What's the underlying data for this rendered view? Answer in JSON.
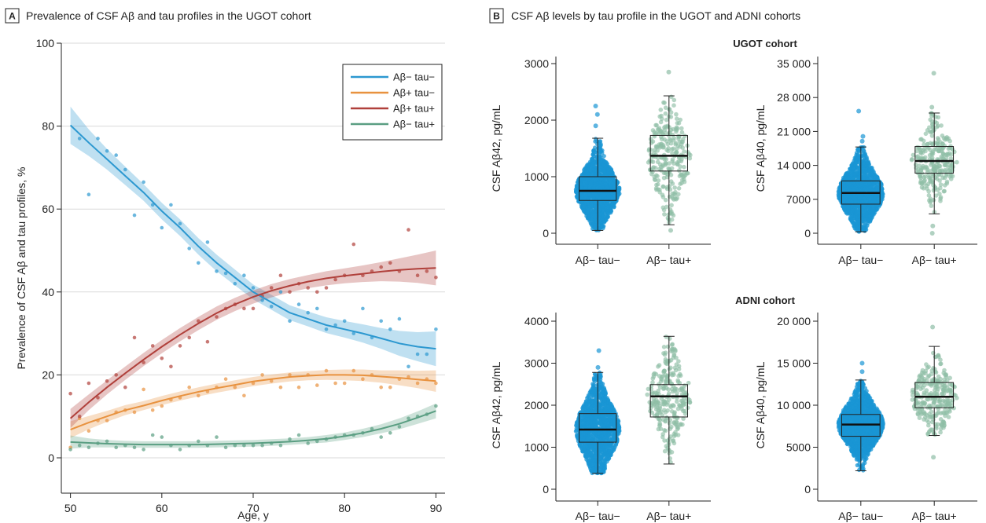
{
  "colors": {
    "ab_neg_tau_neg": "#2c98d0",
    "ab_pos_tau_neg": "#e8923f",
    "ab_pos_tau_pos": "#b0403b",
    "ab_neg_tau_pos": "#5a9e82",
    "box_neg": "#1a96d4",
    "box_pos": "#8fbea6"
  },
  "panel_a": {
    "letter": "A",
    "title": "Prevalence of CSF Aβ and tau profiles in the UGOT cohort"
  },
  "panel_b": {
    "letter": "B",
    "title": "CSF Aβ levels by tau profile in the UGOT and ADNI cohorts",
    "ugot_label": "UGOT cohort",
    "adni_label": "ADNI cohort"
  },
  "chart_data": [
    {
      "id": "prevalence",
      "type": "line",
      "xlabel": "Age, y",
      "ylabel": "Prevalence of CSF Aβ and tau profiles, %",
      "xlim": [
        49,
        91
      ],
      "ylim": [
        0,
        100
      ],
      "xticks": [
        50,
        60,
        70,
        80,
        90
      ],
      "yticks": [
        0,
        20,
        40,
        60,
        80,
        100
      ],
      "grid": true,
      "legend_position": "top-right",
      "x": [
        50,
        52,
        54,
        56,
        58,
        60,
        62,
        64,
        66,
        68,
        70,
        72,
        74,
        76,
        78,
        80,
        82,
        84,
        86,
        88,
        90
      ],
      "series": [
        {
          "name": "Aβ− tau−",
          "color": "#2c98d0",
          "values": [
            80.2,
            76.0,
            72.0,
            68.0,
            64.0,
            59.5,
            55.5,
            51.0,
            47.0,
            43.5,
            40.0,
            37.5,
            35.0,
            33.5,
            32.0,
            31.0,
            30.0,
            28.8,
            27.6,
            26.8,
            26.3
          ],
          "band": [
            4.5,
            3.2,
            2.5,
            2.2,
            2.0,
            2.0,
            2.0,
            2.0,
            2.0,
            1.9,
            1.8,
            1.8,
            1.8,
            1.8,
            1.9,
            2.0,
            2.2,
            2.5,
            3.0,
            3.5,
            4.2
          ],
          "points": [
            [
              51,
              77
            ],
            [
              52,
              63.5
            ],
            [
              53,
              77
            ],
            [
              54,
              74
            ],
            [
              55,
              73
            ],
            [
              56,
              69.5
            ],
            [
              57,
              58.5
            ],
            [
              58,
              66.5
            ],
            [
              59,
              61
            ],
            [
              60,
              55.5
            ],
            [
              61,
              61
            ],
            [
              62,
              56.5
            ],
            [
              63,
              50.5
            ],
            [
              64,
              47
            ],
            [
              65,
              52
            ],
            [
              66,
              45
            ],
            [
              67,
              44.5
            ],
            [
              68,
              42
            ],
            [
              69,
              44
            ],
            [
              70,
              41
            ],
            [
              71,
              38
            ],
            [
              72,
              36.5
            ],
            [
              73,
              40
            ],
            [
              74,
              33
            ],
            [
              75,
              37
            ],
            [
              76,
              35
            ],
            [
              77,
              36
            ],
            [
              78,
              31
            ],
            [
              79,
              32
            ],
            [
              80,
              33
            ],
            [
              81,
              30
            ],
            [
              82,
              36
            ],
            [
              83,
              29
            ],
            [
              84,
              33
            ],
            [
              85,
              31
            ],
            [
              86,
              33.5
            ],
            [
              87,
              22
            ],
            [
              88,
              25
            ],
            [
              89,
              25
            ],
            [
              90,
              31
            ]
          ]
        },
        {
          "name": "Aβ+ tau−",
          "color": "#e8923f",
          "values": [
            6.8,
            8.5,
            10.0,
            11.5,
            12.6,
            13.8,
            14.9,
            15.9,
            16.8,
            17.6,
            18.4,
            19.0,
            19.5,
            19.8,
            20.0,
            20.0,
            19.9,
            19.6,
            19.3,
            18.9,
            18.5
          ],
          "band": [
            2.0,
            1.6,
            1.3,
            1.2,
            1.1,
            1.1,
            1.1,
            1.1,
            1.1,
            1.1,
            1.1,
            1.1,
            1.1,
            1.1,
            1.2,
            1.3,
            1.4,
            1.5,
            1.8,
            2.1,
            2.6
          ],
          "points": [
            [
              50,
              2.5
            ],
            [
              51,
              9.5
            ],
            [
              52,
              6.5
            ],
            [
              53,
              9
            ],
            [
              54,
              9
            ],
            [
              55,
              11
            ],
            [
              56,
              11.5
            ],
            [
              57,
              11
            ],
            [
              58,
              16.5
            ],
            [
              59,
              11.5
            ],
            [
              60,
              12.5
            ],
            [
              61,
              14
            ],
            [
              62,
              14.5
            ],
            [
              63,
              17
            ],
            [
              64,
              15
            ],
            [
              65,
              16
            ],
            [
              66,
              17
            ],
            [
              67,
              19
            ],
            [
              68,
              17
            ],
            [
              69,
              15
            ],
            [
              70,
              18
            ],
            [
              71,
              20
            ],
            [
              72,
              18.5
            ],
            [
              73,
              17
            ],
            [
              74,
              20
            ],
            [
              75,
              17
            ],
            [
              76,
              20
            ],
            [
              77,
              17.5
            ],
            [
              78,
              21
            ],
            [
              79,
              18
            ],
            [
              80,
              18
            ],
            [
              81,
              21
            ],
            [
              82,
              19
            ],
            [
              83,
              20
            ],
            [
              84,
              17
            ],
            [
              85,
              17
            ],
            [
              86,
              19
            ],
            [
              87,
              19.5
            ],
            [
              88,
              18
            ],
            [
              89,
              19
            ],
            [
              90,
              18
            ]
          ]
        },
        {
          "name": "Aβ+ tau+",
          "color": "#b0403b",
          "values": [
            9.5,
            13.4,
            17.0,
            20.4,
            23.7,
            26.8,
            29.7,
            32.4,
            34.9,
            37.0,
            38.8,
            40.3,
            41.5,
            42.5,
            43.3,
            43.9,
            44.4,
            44.9,
            45.3,
            45.6,
            45.8
          ],
          "band": [
            2.3,
            1.9,
            1.7,
            1.6,
            1.6,
            1.6,
            1.6,
            1.6,
            1.6,
            1.6,
            1.6,
            1.6,
            1.6,
            1.6,
            1.7,
            1.8,
            2.0,
            2.3,
            2.8,
            3.4,
            4.2
          ],
          "points": [
            [
              50,
              15.5
            ],
            [
              51,
              10
            ],
            [
              52,
              18
            ],
            [
              53,
              14.5
            ],
            [
              54,
              18.5
            ],
            [
              55,
              20
            ],
            [
              56,
              17
            ],
            [
              57,
              29
            ],
            [
              58,
              23
            ],
            [
              59,
              27
            ],
            [
              60,
              24
            ],
            [
              61,
              22
            ],
            [
              62,
              27
            ],
            [
              63,
              29
            ],
            [
              64,
              33
            ],
            [
              65,
              28
            ],
            [
              66,
              34
            ],
            [
              67,
              36
            ],
            [
              68,
              37
            ],
            [
              69,
              36
            ],
            [
              70,
              36
            ],
            [
              71,
              39
            ],
            [
              72,
              41
            ],
            [
              73,
              44
            ],
            [
              74,
              40
            ],
            [
              75,
              42
            ],
            [
              76,
              41
            ],
            [
              77,
              40
            ],
            [
              78,
              41
            ],
            [
              79,
              43
            ],
            [
              80,
              44
            ],
            [
              81,
              51.5
            ],
            [
              82,
              44
            ],
            [
              83,
              45
            ],
            [
              84,
              46
            ],
            [
              85,
              47
            ],
            [
              86,
              45
            ],
            [
              87,
              55
            ],
            [
              88,
              44
            ],
            [
              89,
              45
            ],
            [
              90,
              43.5
            ]
          ]
        },
        {
          "name": "Aβ− tau+",
          "color": "#5a9e82",
          "values": [
            3.8,
            3.6,
            3.4,
            3.3,
            3.2,
            3.2,
            3.2,
            3.2,
            3.3,
            3.4,
            3.5,
            3.7,
            3.9,
            4.2,
            4.6,
            5.2,
            6.0,
            7.0,
            8.2,
            9.7,
            11.3
          ],
          "band": [
            1.6,
            1.1,
            0.9,
            0.8,
            0.8,
            0.8,
            0.8,
            0.8,
            0.8,
            0.8,
            0.8,
            0.8,
            0.8,
            0.8,
            0.9,
            0.9,
            1.0,
            1.1,
            1.3,
            1.5,
            1.8
          ],
          "points": [
            [
              50,
              2
            ],
            [
              51,
              3
            ],
            [
              52,
              2.5
            ],
            [
              53,
              3.5
            ],
            [
              54,
              4
            ],
            [
              55,
              2.5
            ],
            [
              56,
              3
            ],
            [
              57,
              2.5
            ],
            [
              58,
              2
            ],
            [
              59,
              5.5
            ],
            [
              60,
              5
            ],
            [
              61,
              3
            ],
            [
              62,
              2
            ],
            [
              63,
              3
            ],
            [
              64,
              4
            ],
            [
              65,
              3
            ],
            [
              66,
              5
            ],
            [
              67,
              2.5
            ],
            [
              68,
              3
            ],
            [
              69,
              3
            ],
            [
              70,
              3
            ],
            [
              71,
              3
            ],
            [
              72,
              3.5
            ],
            [
              73,
              3
            ],
            [
              74,
              4.5
            ],
            [
              75,
              5.5
            ],
            [
              76,
              3.5
            ],
            [
              77,
              4
            ],
            [
              78,
              4.5
            ],
            [
              79,
              5
            ],
            [
              80,
              5.5
            ],
            [
              81,
              5.5
            ],
            [
              82,
              6
            ],
            [
              83,
              7
            ],
            [
              84,
              5
            ],
            [
              85,
              6
            ],
            [
              86,
              7.5
            ],
            [
              87,
              9.5
            ],
            [
              88,
              10
            ],
            [
              89,
              10.5
            ],
            [
              90,
              12.5
            ]
          ]
        }
      ]
    },
    {
      "id": "ugot_ab42",
      "type": "box",
      "ylabel": "CSF Aβ42, pg/mL",
      "ylim": [
        0,
        3000
      ],
      "yticks": [
        0,
        1000,
        2000,
        3000
      ],
      "ytick_labels": [
        "0",
        "1000",
        "2000",
        "3000"
      ],
      "categories": [
        "Aβ− tau−",
        "Aβ− tau+"
      ],
      "boxes": [
        {
          "whisker_low": 50,
          "q1": 580,
          "median": 750,
          "q3": 1000,
          "whisker_high": 1680,
          "outliers": [
            1900,
            2100,
            2250
          ]
        },
        {
          "whisker_low": 150,
          "q1": 1100,
          "median": 1370,
          "q3": 1730,
          "whisker_high": 2430,
          "outliers": [
            50,
            2850
          ]
        }
      ]
    },
    {
      "id": "ugot_ab40",
      "type": "box",
      "ylabel": "CSF Aβ40, pg/mL",
      "ylim": [
        0,
        35000
      ],
      "yticks": [
        0,
        7000,
        14000,
        21000,
        28000,
        35000
      ],
      "ytick_labels": [
        "0",
        "7000",
        "14 000",
        "21 000",
        "28 000",
        "35 000"
      ],
      "categories": [
        "Aβ− tau−",
        "Aβ− tau+"
      ],
      "boxes": [
        {
          "whisker_low": 300,
          "q1": 6000,
          "median": 8300,
          "q3": 10800,
          "whisker_high": 17800,
          "outliers": [
            19000,
            20000,
            25200
          ]
        },
        {
          "whisker_low": 4000,
          "q1": 12400,
          "median": 14900,
          "q3": 17900,
          "whisker_high": 24800,
          "outliers": [
            0,
            1500,
            26000,
            33000
          ]
        }
      ]
    },
    {
      "id": "adni_ab42",
      "type": "box",
      "ylabel": "CSF Aβ42, pg/mL",
      "ylim": [
        0,
        4000
      ],
      "yticks": [
        0,
        1000,
        2000,
        3000,
        4000
      ],
      "ytick_labels": [
        "0",
        "1000",
        "2000",
        "3000",
        "4000"
      ],
      "categories": [
        "Aβ− tau−",
        "Aβ− tau+"
      ],
      "boxes": [
        {
          "whisker_low": 380,
          "q1": 1120,
          "median": 1420,
          "q3": 1800,
          "whisker_high": 2780,
          "outliers": [
            2900,
            3300
          ]
        },
        {
          "whisker_low": 600,
          "q1": 1720,
          "median": 2210,
          "q3": 2490,
          "whisker_high": 3640,
          "outliers": []
        }
      ]
    },
    {
      "id": "adni_ab40",
      "type": "box",
      "ylabel": "CSF Aβ40, pg/mL",
      "ylim": [
        0,
        20000
      ],
      "yticks": [
        0,
        5000,
        10000,
        15000,
        20000
      ],
      "ytick_labels": [
        "0",
        "5000",
        "10 000",
        "15 000",
        "20 000"
      ],
      "categories": [
        "Aβ− tau−",
        "Aβ− tau+"
      ],
      "boxes": [
        {
          "whisker_low": 2200,
          "q1": 6300,
          "median": 7700,
          "q3": 8900,
          "whisker_high": 13000,
          "outliers": [
            14000,
            15000
          ]
        },
        {
          "whisker_low": 6400,
          "q1": 9700,
          "median": 11000,
          "q3": 12700,
          "whisker_high": 17000,
          "outliers": [
            3800,
            19300
          ]
        }
      ]
    }
  ]
}
